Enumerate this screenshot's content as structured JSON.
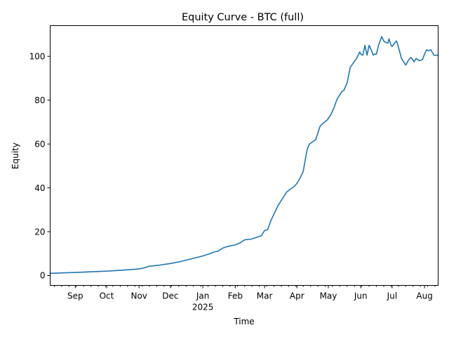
{
  "chart_data": {
    "type": "line",
    "title": "Equity Curve - BTC (full)",
    "xlabel": "Time",
    "ylabel": "Equity",
    "grid": false,
    "line_color": "#1f77b4",
    "ylim": [
      -4.5,
      114
    ],
    "yticks": [
      0,
      20,
      40,
      60,
      80,
      100
    ],
    "xlim": [
      "2024-08-08",
      "2025-08-14"
    ],
    "x_major_ticks": [
      {
        "date": "2024-09-01",
        "label": "Sep"
      },
      {
        "date": "2024-10-01",
        "label": "Oct"
      },
      {
        "date": "2024-11-01",
        "label": "Nov"
      },
      {
        "date": "2024-12-01",
        "label": "Dec"
      },
      {
        "date": "2025-01-01",
        "label": "Jan",
        "sublabel": "2025"
      },
      {
        "date": "2025-02-01",
        "label": "Feb"
      },
      {
        "date": "2025-03-01",
        "label": "Mar"
      },
      {
        "date": "2025-04-01",
        "label": "Apr"
      },
      {
        "date": "2025-05-01",
        "label": "May"
      },
      {
        "date": "2025-06-01",
        "label": "Jun"
      },
      {
        "date": "2025-07-01",
        "label": "Jul"
      },
      {
        "date": "2025-08-01",
        "label": "Aug"
      }
    ],
    "series": [
      {
        "x": [
          "2024-08-08",
          "2024-08-20",
          "2024-09-01",
          "2024-09-15",
          "2024-10-01",
          "2024-10-15",
          "2024-11-01",
          "2024-11-06",
          "2024-11-10",
          "2024-11-20",
          "2024-12-01",
          "2024-12-10",
          "2024-12-20",
          "2024-12-31",
          "2025-01-08",
          "2025-01-12",
          "2025-01-15",
          "2025-01-20",
          "2025-01-25",
          "2025-02-01",
          "2025-02-06",
          "2025-02-10",
          "2025-02-16",
          "2025-02-22",
          "2025-02-26",
          "2025-03-01",
          "2025-03-04",
          "2025-03-07",
          "2025-03-10",
          "2025-03-14",
          "2025-03-18",
          "2025-03-22",
          "2025-03-26",
          "2025-03-29",
          "2025-04-01",
          "2025-04-04",
          "2025-04-07",
          "2025-04-09",
          "2025-04-11",
          "2025-04-13",
          "2025-04-16",
          "2025-04-19",
          "2025-04-23",
          "2025-04-25",
          "2025-04-30",
          "2025-05-03",
          "2025-05-06",
          "2025-05-09",
          "2025-05-10",
          "2025-05-14",
          "2025-05-16",
          "2025-05-19",
          "2025-05-22",
          "2025-05-28",
          "2025-05-31",
          "2025-06-01",
          "2025-06-03",
          "2025-06-05",
          "2025-06-07",
          "2025-06-09",
          "2025-06-11",
          "2025-06-13",
          "2025-06-14",
          "2025-06-16",
          "2025-06-18",
          "2025-06-21",
          "2025-06-23",
          "2025-06-24",
          "2025-06-27",
          "2025-06-28",
          "2025-06-30",
          "2025-07-01",
          "2025-07-05",
          "2025-07-06",
          "2025-07-10",
          "2025-07-12",
          "2025-07-14",
          "2025-07-17",
          "2025-07-19",
          "2025-07-22",
          "2025-07-24",
          "2025-07-27",
          "2025-07-30",
          "2025-08-01",
          "2025-08-03",
          "2025-08-05",
          "2025-08-07",
          "2025-08-10",
          "2025-08-14"
        ],
        "y": [
          1.0,
          1.2,
          1.4,
          1.7,
          2.0,
          2.4,
          3.0,
          3.5,
          4.2,
          4.7,
          5.5,
          6.3,
          7.5,
          8.8,
          10.0,
          10.8,
          11.0,
          12.5,
          13.3,
          14.0,
          15.0,
          16.3,
          16.6,
          17.5,
          18.2,
          20.5,
          21.0,
          25.0,
          28.0,
          32.0,
          35.0,
          38.0,
          39.5,
          40.5,
          42.0,
          44.5,
          47.5,
          53.0,
          58.0,
          60.0,
          61.0,
          62.0,
          68.0,
          69.0,
          71.0,
          73.0,
          76.0,
          80.0,
          81.0,
          84.0,
          84.5,
          88.0,
          95.0,
          99.0,
          102.0,
          101.0,
          100.5,
          105.0,
          100.5,
          105.0,
          103.0,
          100.5,
          101.0,
          101.0,
          105.0,
          109.0,
          107.0,
          106.5,
          106.0,
          108.0,
          105.0,
          104.5,
          107.0,
          106.0,
          99.0,
          97.5,
          96.0,
          98.5,
          99.5,
          97.5,
          99.0,
          98.0,
          98.5,
          101.0,
          103.0,
          102.5,
          103.0,
          100.5,
          100.5
        ]
      }
    ]
  }
}
